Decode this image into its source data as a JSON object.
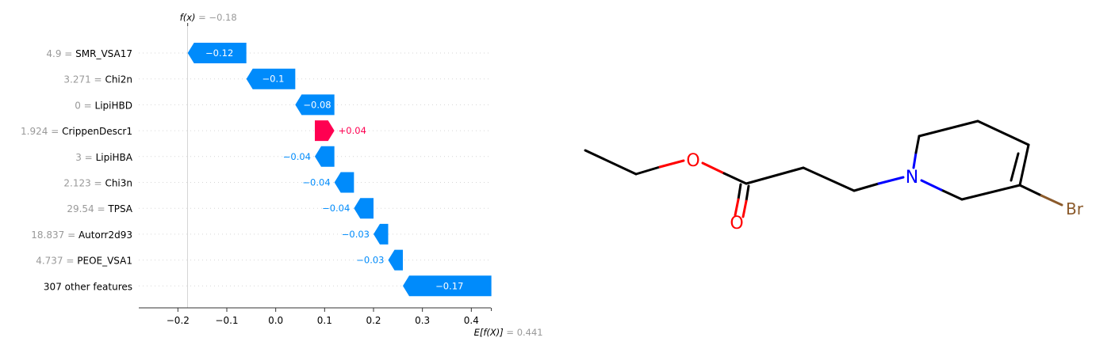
{
  "chart_data": {
    "type": "waterfall",
    "fx_label": "f(x) = −0.18",
    "fx_value": -0.18,
    "ex_label": "E[f(X)] = 0.441",
    "ex_value": 0.441,
    "xlim": [
      -0.28,
      0.44
    ],
    "xticks": [
      -0.2,
      -0.1,
      0.0,
      0.1,
      0.2,
      0.3,
      0.4
    ],
    "xtick_labels": [
      "−0.2",
      "−0.1",
      "0.0",
      "0.1",
      "0.2",
      "0.3",
      "0.4"
    ],
    "features": [
      {
        "value_text": "4.9",
        "name": "SMR_VSA17",
        "start": -0.06,
        "end": -0.18,
        "label": "−0.12"
      },
      {
        "value_text": "3.271",
        "name": "Chi2n",
        "start": 0.04,
        "end": -0.06,
        "label": "−0.1"
      },
      {
        "value_text": "0",
        "name": "LipiHBD",
        "start": 0.12,
        "end": 0.04,
        "label": "−0.08"
      },
      {
        "value_text": "1.924",
        "name": "CrippenDescr1",
        "start": 0.08,
        "end": 0.12,
        "label": "+0.04"
      },
      {
        "value_text": "3",
        "name": "LipiHBA",
        "start": 0.12,
        "end": 0.08,
        "label": "−0.04"
      },
      {
        "value_text": "2.123",
        "name": "Chi3n",
        "start": 0.16,
        "end": 0.12,
        "label": "−0.04"
      },
      {
        "value_text": "29.54",
        "name": "TPSA",
        "start": 0.2,
        "end": 0.16,
        "label": "−0.04"
      },
      {
        "value_text": "18.837",
        "name": "Autorr2d93",
        "start": 0.23,
        "end": 0.2,
        "label": "−0.03"
      },
      {
        "value_text": "4.737",
        "name": "PEOE_VSA1",
        "start": 0.26,
        "end": 0.23,
        "label": "−0.03"
      },
      {
        "value_text": "",
        "name": "307 other features",
        "start": 0.441,
        "end": 0.26,
        "label": "−0.17"
      }
    ],
    "colors": {
      "negative": "#008bfb",
      "positive": "#ff0051",
      "axis": "#333333",
      "muted": "#999999"
    }
  },
  "molecule": {
    "atom_labels": {
      "oxygen_ether": "O",
      "oxygen_carbonyl": "O",
      "nitrogen": "N",
      "bromine": "Br"
    },
    "colors": {
      "bond": "#000000",
      "oxygen": "#ff0000",
      "nitrogen": "#0000ff",
      "bromine": "#8b5a2b"
    }
  }
}
